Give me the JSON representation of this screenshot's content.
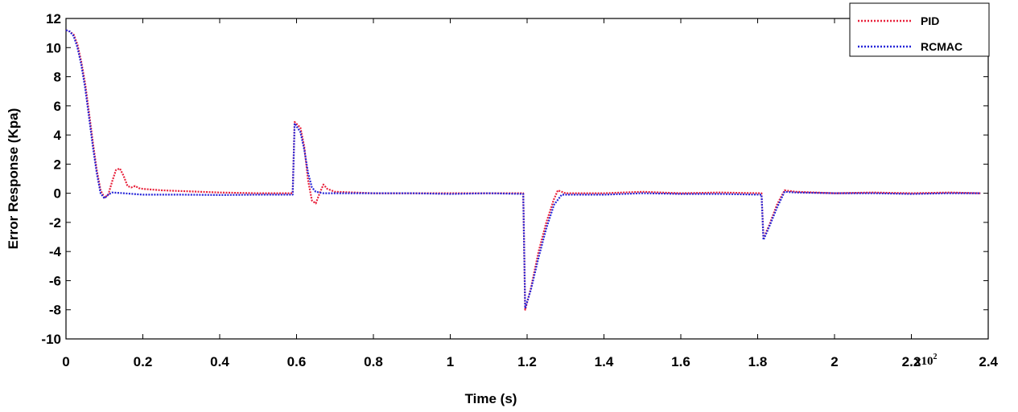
{
  "chart_data": {
    "type": "line",
    "xlabel": "Time (s)",
    "ylabel": "Error Response (Kpa)",
    "x_multiplier_label": "x10",
    "x_multiplier_exponent": "2",
    "xlim": [
      0,
      2.4
    ],
    "ylim": [
      -10,
      12
    ],
    "x_ticks": [
      {
        "value": 0,
        "label": "0"
      },
      {
        "value": 0.2,
        "label": "0.2"
      },
      {
        "value": 0.4,
        "label": "0.4"
      },
      {
        "value": 0.6,
        "label": "0.6"
      },
      {
        "value": 0.8,
        "label": "0.8"
      },
      {
        "value": 1.0,
        "label": "1"
      },
      {
        "value": 1.2,
        "label": "1.2"
      },
      {
        "value": 1.4,
        "label": "1.4"
      },
      {
        "value": 1.6,
        "label": "1.6"
      },
      {
        "value": 1.8,
        "label": "1.8"
      },
      {
        "value": 2.0,
        "label": "2"
      },
      {
        "value": 2.2,
        "label": "2.2"
      },
      {
        "value": 2.4,
        "label": "2.4"
      }
    ],
    "y_ticks": [
      {
        "value": 12,
        "label": "12"
      },
      {
        "value": 10,
        "label": "10"
      },
      {
        "value": 8,
        "label": "8"
      },
      {
        "value": 6,
        "label": "6"
      },
      {
        "value": 4,
        "label": "4"
      },
      {
        "value": 2,
        "label": "2"
      },
      {
        "value": 0,
        "label": "0"
      },
      {
        "value": -2,
        "label": "-2"
      },
      {
        "value": -4,
        "label": "-4"
      },
      {
        "value": -6,
        "label": "-6"
      },
      {
        "value": -8,
        "label": "-8"
      },
      {
        "value": -10,
        "label": "-10"
      }
    ],
    "grid": false,
    "legend_position": "top-right",
    "series": [
      {
        "name": "PID",
        "color": "#e8203a",
        "style": "dotted",
        "points": [
          [
            0,
            11.2
          ],
          [
            0.01,
            11.1
          ],
          [
            0.02,
            10.9
          ],
          [
            0.03,
            10.2
          ],
          [
            0.04,
            9.0
          ],
          [
            0.05,
            7.5
          ],
          [
            0.06,
            5.5
          ],
          [
            0.07,
            3.5
          ],
          [
            0.08,
            1.6
          ],
          [
            0.09,
            0.2
          ],
          [
            0.1,
            -0.3
          ],
          [
            0.11,
            -0.1
          ],
          [
            0.12,
            0.8
          ],
          [
            0.13,
            1.6
          ],
          [
            0.14,
            1.7
          ],
          [
            0.15,
            1.2
          ],
          [
            0.16,
            0.5
          ],
          [
            0.17,
            0.4
          ],
          [
            0.18,
            0.5
          ],
          [
            0.19,
            0.35
          ],
          [
            0.2,
            0.3
          ],
          [
            0.25,
            0.2
          ],
          [
            0.3,
            0.15
          ],
          [
            0.4,
            0.05
          ],
          [
            0.5,
            0.0
          ],
          [
            0.59,
            0.0
          ],
          [
            0.595,
            4.9
          ],
          [
            0.61,
            4.5
          ],
          [
            0.62,
            3.2
          ],
          [
            0.63,
            0.9
          ],
          [
            0.64,
            -0.5
          ],
          [
            0.65,
            -0.7
          ],
          [
            0.66,
            0.0
          ],
          [
            0.67,
            0.6
          ],
          [
            0.68,
            0.3
          ],
          [
            0.7,
            0.1
          ],
          [
            0.8,
            0.0
          ],
          [
            0.9,
            0.0
          ],
          [
            1.0,
            0.0
          ],
          [
            1.1,
            0.0
          ],
          [
            1.19,
            0.0
          ],
          [
            1.195,
            -8.0
          ],
          [
            1.21,
            -6.5
          ],
          [
            1.23,
            -4.0
          ],
          [
            1.25,
            -2.0
          ],
          [
            1.27,
            -0.4
          ],
          [
            1.28,
            0.2
          ],
          [
            1.3,
            0.0
          ],
          [
            1.4,
            0.0
          ],
          [
            1.5,
            0.1
          ],
          [
            1.6,
            0.0
          ],
          [
            1.7,
            0.05
          ],
          [
            1.81,
            0.0
          ],
          [
            1.815,
            -3.1
          ],
          [
            1.83,
            -2.2
          ],
          [
            1.85,
            -0.8
          ],
          [
            1.87,
            0.2
          ],
          [
            1.9,
            0.1
          ],
          [
            2.0,
            0.0
          ],
          [
            2.1,
            0.05
          ],
          [
            2.2,
            0.0
          ],
          [
            2.3,
            0.05
          ],
          [
            2.38,
            0.0
          ]
        ]
      },
      {
        "name": "RCMAC",
        "color": "#2424d8",
        "style": "dotted",
        "points": [
          [
            0,
            11.2
          ],
          [
            0.01,
            11.1
          ],
          [
            0.02,
            10.8
          ],
          [
            0.03,
            10.0
          ],
          [
            0.04,
            8.8
          ],
          [
            0.05,
            7.2
          ],
          [
            0.06,
            5.2
          ],
          [
            0.07,
            3.2
          ],
          [
            0.08,
            1.4
          ],
          [
            0.09,
            0.0
          ],
          [
            0.1,
            -0.35
          ],
          [
            0.11,
            -0.1
          ],
          [
            0.12,
            0.05
          ],
          [
            0.15,
            0.0
          ],
          [
            0.2,
            -0.1
          ],
          [
            0.3,
            -0.1
          ],
          [
            0.4,
            -0.12
          ],
          [
            0.5,
            -0.1
          ],
          [
            0.59,
            -0.1
          ],
          [
            0.595,
            4.8
          ],
          [
            0.61,
            4.2
          ],
          [
            0.62,
            3.0
          ],
          [
            0.63,
            1.4
          ],
          [
            0.64,
            0.4
          ],
          [
            0.65,
            0.1
          ],
          [
            0.67,
            0.0
          ],
          [
            0.7,
            0.0
          ],
          [
            0.8,
            0.0
          ],
          [
            0.9,
            0.0
          ],
          [
            1.0,
            -0.05
          ],
          [
            1.1,
            0.0
          ],
          [
            1.19,
            -0.05
          ],
          [
            1.195,
            -7.9
          ],
          [
            1.21,
            -6.6
          ],
          [
            1.23,
            -4.4
          ],
          [
            1.25,
            -2.4
          ],
          [
            1.27,
            -0.8
          ],
          [
            1.29,
            -0.1
          ],
          [
            1.3,
            -0.1
          ],
          [
            1.4,
            -0.1
          ],
          [
            1.5,
            0.0
          ],
          [
            1.6,
            -0.05
          ],
          [
            1.7,
            -0.05
          ],
          [
            1.81,
            -0.1
          ],
          [
            1.815,
            -3.2
          ],
          [
            1.83,
            -2.3
          ],
          [
            1.85,
            -1.0
          ],
          [
            1.87,
            0.1
          ],
          [
            1.9,
            0.05
          ],
          [
            2.0,
            0.0
          ],
          [
            2.1,
            0.0
          ],
          [
            2.2,
            -0.05
          ],
          [
            2.3,
            0.0
          ],
          [
            2.38,
            0.0
          ]
        ]
      }
    ]
  }
}
